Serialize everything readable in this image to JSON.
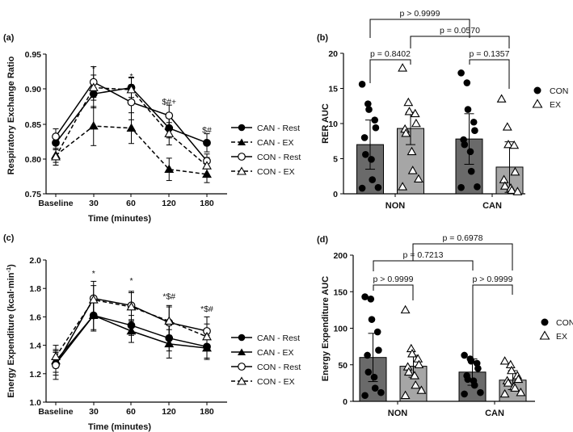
{
  "chart_data": [
    {
      "panel": "(a)",
      "type": "line",
      "xlabel": "Time (minutes)",
      "ylabel": "Respiratory Exchange Ratio",
      "categories": [
        "Baseline",
        "30",
        "60",
        "120",
        "180"
      ],
      "ylim": [
        0.75,
        0.95
      ],
      "yticks": [
        "0.75",
        "0.80",
        "0.85",
        "0.90",
        "0.95"
      ],
      "series": [
        {
          "name": "CAN - Rest",
          "marker": "circle-filled",
          "dash": false,
          "values": [
            0.823,
            0.893,
            0.902,
            0.844,
            0.823
          ],
          "errors": [
            0.01,
            0.02,
            0.014,
            0.014,
            0.013
          ]
        },
        {
          "name": "CAN - EX",
          "marker": "triangle-filled",
          "dash": true,
          "values": [
            0.805,
            0.847,
            0.844,
            0.785,
            0.778
          ],
          "errors": [
            0.01,
            0.028,
            0.022,
            0.016,
            0.012
          ]
        },
        {
          "name": "CON - Rest",
          "marker": "circle-open",
          "dash": false,
          "values": [
            0.832,
            0.91,
            0.881,
            0.862,
            0.797
          ],
          "errors": [
            0.011,
            0.022,
            0.025,
            0.015,
            0.01
          ]
        },
        {
          "name": "CON - EX",
          "marker": "triangle-open",
          "dash": true,
          "values": [
            0.803,
            0.902,
            0.899,
            0.836,
            0.79
          ],
          "errors": [
            0.012,
            0.018,
            0.018,
            0.016,
            0.012
          ]
        }
      ],
      "annotations": [
        {
          "category": "30",
          "text": "*",
          "y": 0.925
        },
        {
          "category": "60",
          "text": "*",
          "y": 0.914
        },
        {
          "category": "120",
          "text": "$#+",
          "y": 0.878
        },
        {
          "category": "180",
          "text": "$#",
          "y": 0.837
        }
      ]
    },
    {
      "panel": "(b)",
      "type": "bar",
      "ylabel": "RER AUC",
      "categories": [
        "NON",
        "CAN"
      ],
      "ylim": [
        0,
        20
      ],
      "yticks": [
        "0",
        "5",
        "10",
        "15",
        "20"
      ],
      "legend": [
        {
          "name": "CON",
          "marker": "circle-filled"
        },
        {
          "name": "EX",
          "marker": "triangle-open"
        }
      ],
      "series": [
        {
          "name": "CON",
          "values": [
            7.0,
            7.8
          ],
          "errors": [
            3.5,
            3.6
          ],
          "points": [
            [
              15.6,
              12.8,
              12.0,
              10.5,
              9.4,
              8.0,
              5.6,
              4.9,
              2.0,
              0.9,
              0.8
            ],
            [
              17.2,
              15.8,
              12.0,
              10.2,
              9.0,
              7.7,
              7.0,
              6.0,
              3.2,
              1.0,
              0.9
            ]
          ]
        },
        {
          "name": "EX",
          "values": [
            9.3,
            3.8
          ],
          "errors": [
            2.3,
            3.6
          ],
          "points": [
            [
              17.9,
              13.0,
              11.7,
              11.4,
              10.0,
              9.2,
              8.6,
              6.0,
              3.3,
              2.1,
              1.0
            ],
            [
              13.5,
              9.5,
              7.0,
              6.9,
              3.1,
              2.0,
              1.1,
              0.8,
              0.5,
              0.3
            ]
          ]
        }
      ],
      "comparisons": [
        "p > 0.9999",
        "p = 0.0570",
        "p = 0.8402",
        "p = 0.1357"
      ]
    },
    {
      "panel": "(c)",
      "type": "line",
      "xlabel": "Time (minutes)",
      "ylabel": "Energy Expenditure (kcal·min",
      "ylabel_sup": "-1",
      "ylabel_end": ")",
      "categories": [
        "Baseline",
        "30",
        "60",
        "120",
        "180"
      ],
      "ylim": [
        1.0,
        2.0
      ],
      "yticks": [
        "1.0",
        "1.2",
        "1.4",
        "1.6",
        "1.8",
        "2.0"
      ],
      "series": [
        {
          "name": "CAN - Rest",
          "marker": "circle-filled",
          "dash": false,
          "values": [
            1.27,
            1.61,
            1.54,
            1.45,
            1.39
          ],
          "errors": [
            0.08,
            0.1,
            0.07,
            0.09,
            0.08
          ]
        },
        {
          "name": "CAN - EX",
          "marker": "triangle-filled",
          "dash": false,
          "values": [
            1.29,
            1.61,
            1.5,
            1.41,
            1.38
          ],
          "errors": [
            0.08,
            0.11,
            0.08,
            0.1,
            0.08
          ]
        },
        {
          "name": "CON - Rest",
          "marker": "circle-open",
          "dash": false,
          "values": [
            1.26,
            1.73,
            1.68,
            1.56,
            1.5
          ],
          "errors": [
            0.1,
            0.12,
            0.1,
            0.12,
            0.1
          ]
        },
        {
          "name": "CON - EX",
          "marker": "triangle-open",
          "dash": true,
          "values": [
            1.32,
            1.72,
            1.67,
            1.57,
            1.46
          ],
          "errors": [
            0.08,
            0.1,
            0.1,
            0.1,
            0.09
          ]
        }
      ],
      "annotations": [
        {
          "category": "30",
          "text": "*",
          "y": 1.885
        },
        {
          "category": "60",
          "text": "*",
          "y": 1.835
        },
        {
          "category": "120",
          "text": "*$#",
          "y": 1.725
        },
        {
          "category": "180",
          "text": "*$#",
          "y": 1.635
        }
      ]
    },
    {
      "panel": "(d)",
      "type": "bar",
      "ylabel": "Energy Expenditure AUC",
      "categories": [
        "NON",
        "CAN"
      ],
      "ylim": [
        0,
        200
      ],
      "yticks": [
        "0",
        "50",
        "100",
        "150",
        "200"
      ],
      "legend": [
        {
          "name": "CON",
          "marker": "circle-filled"
        },
        {
          "name": "EX",
          "marker": "triangle-open"
        }
      ],
      "series": [
        {
          "name": "CON",
          "values": [
            60,
            40
          ],
          "errors": [
            33,
            18
          ],
          "points": [
            [
              143,
              140,
              112,
              95,
              70,
              63,
              40,
              33,
              18,
              12,
              8
            ],
            [
              63,
              58,
              55,
              52,
              45,
              35,
              30,
              28,
              22,
              12,
              10
            ]
          ]
        },
        {
          "name": "EX",
          "values": [
            48,
            29
          ],
          "errors": [
            15,
            13
          ],
          "points": [
            [
              125,
              72,
              65,
              58,
              50,
              47,
              40,
              35,
              22,
              15,
              8
            ],
            [
              55,
              50,
              42,
              35,
              30,
              28,
              25,
              20,
              18,
              12,
              10
            ]
          ]
        }
      ],
      "comparisons": [
        "p = 0.6978",
        "p = 0.7213",
        "p > 0.9999",
        "p > 0.9999"
      ]
    }
  ]
}
